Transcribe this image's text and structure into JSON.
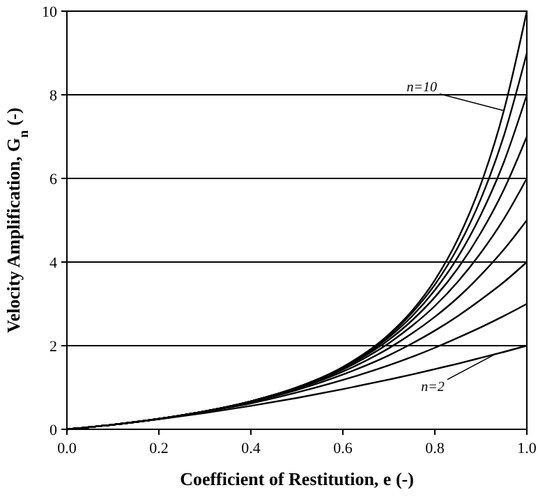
{
  "chart_data": {
    "type": "line",
    "xlabel": "Coefficient of Restitution, e (-)",
    "ylabel": "Velocity Amplification, G$_{n}$ (-)",
    "x": [
      0,
      0.1,
      0.2,
      0.3,
      0.4,
      0.5,
      0.6,
      0.7,
      0.75,
      0.8,
      0.85,
      0.9,
      0.95,
      1
    ],
    "series": [
      {
        "color": "#000000",
        "values": [
          0,
          0.11,
          0.24,
          0.39,
          0.56,
          0.75,
          0.96,
          1.19,
          1.31,
          1.44,
          1.57,
          1.71,
          1.85,
          2
        ]
      },
      {
        "color": "#000000",
        "values": [
          0,
          0.11,
          0.25,
          0.42,
          0.62,
          0.88,
          1.18,
          1.53,
          1.73,
          1.95,
          2.19,
          2.44,
          2.71,
          3
        ]
      },
      {
        "color": "#000000",
        "values": [
          0,
          0.11,
          0.25,
          0.43,
          0.65,
          0.94,
          1.31,
          1.77,
          2.05,
          2.36,
          2.71,
          3.1,
          3.52,
          4
        ]
      },
      {
        "color": "#000000",
        "values": [
          0,
          0.11,
          0.25,
          0.43,
          0.66,
          0.97,
          1.38,
          1.94,
          2.29,
          2.69,
          3.15,
          3.69,
          4.3,
          5
        ]
      },
      {
        "color": "#000000",
        "values": [
          0,
          0.11,
          0.25,
          0.43,
          0.67,
          0.98,
          1.43,
          2.06,
          2.47,
          2.95,
          3.53,
          4.22,
          5.03,
          6
        ]
      },
      {
        "color": "#000000",
        "values": [
          0,
          0.11,
          0.25,
          0.43,
          0.67,
          0.99,
          1.46,
          2.14,
          2.6,
          3.16,
          3.85,
          4.7,
          5.73,
          7
        ]
      },
      {
        "color": "#000000",
        "values": [
          0,
          0.11,
          0.25,
          0.43,
          0.67,
          1,
          1.47,
          2.2,
          2.7,
          3.33,
          4.12,
          5.13,
          6.39,
          8
        ]
      },
      {
        "color": "#000000",
        "values": [
          0,
          0.11,
          0.25,
          0.43,
          0.67,
          1,
          1.48,
          2.24,
          2.78,
          3.46,
          4.35,
          5.51,
          7.02,
          9
        ]
      },
      {
        "color": "#000000",
        "values": [
          0,
          0.11,
          0.25,
          0.43,
          0.67,
          1,
          1.49,
          2.27,
          2.83,
          3.57,
          4.55,
          5.86,
          7.62,
          10
        ]
      }
    ],
    "xlim": [
      0,
      1
    ],
    "ylim": [
      0,
      10
    ],
    "xticks": [
      {
        "value": 0,
        "label": "0.0"
      },
      {
        "value": 0.2,
        "label": "0.2"
      },
      {
        "value": 0.4,
        "label": "0.4"
      },
      {
        "value": 0.6,
        "label": "0.6"
      },
      {
        "value": 0.8,
        "label": "0.8"
      },
      {
        "value": 1,
        "label": "1.0"
      }
    ],
    "yticks": [
      0,
      2,
      4,
      6,
      8,
      10
    ],
    "grid": "y",
    "marker": "none",
    "line_style": "solid",
    "annotations": [
      {
        "text": "n=10",
        "x": 0.95,
        "y": 7.62
      },
      {
        "text": "n=2",
        "x": 0.93,
        "y": 1.79
      }
    ]
  }
}
